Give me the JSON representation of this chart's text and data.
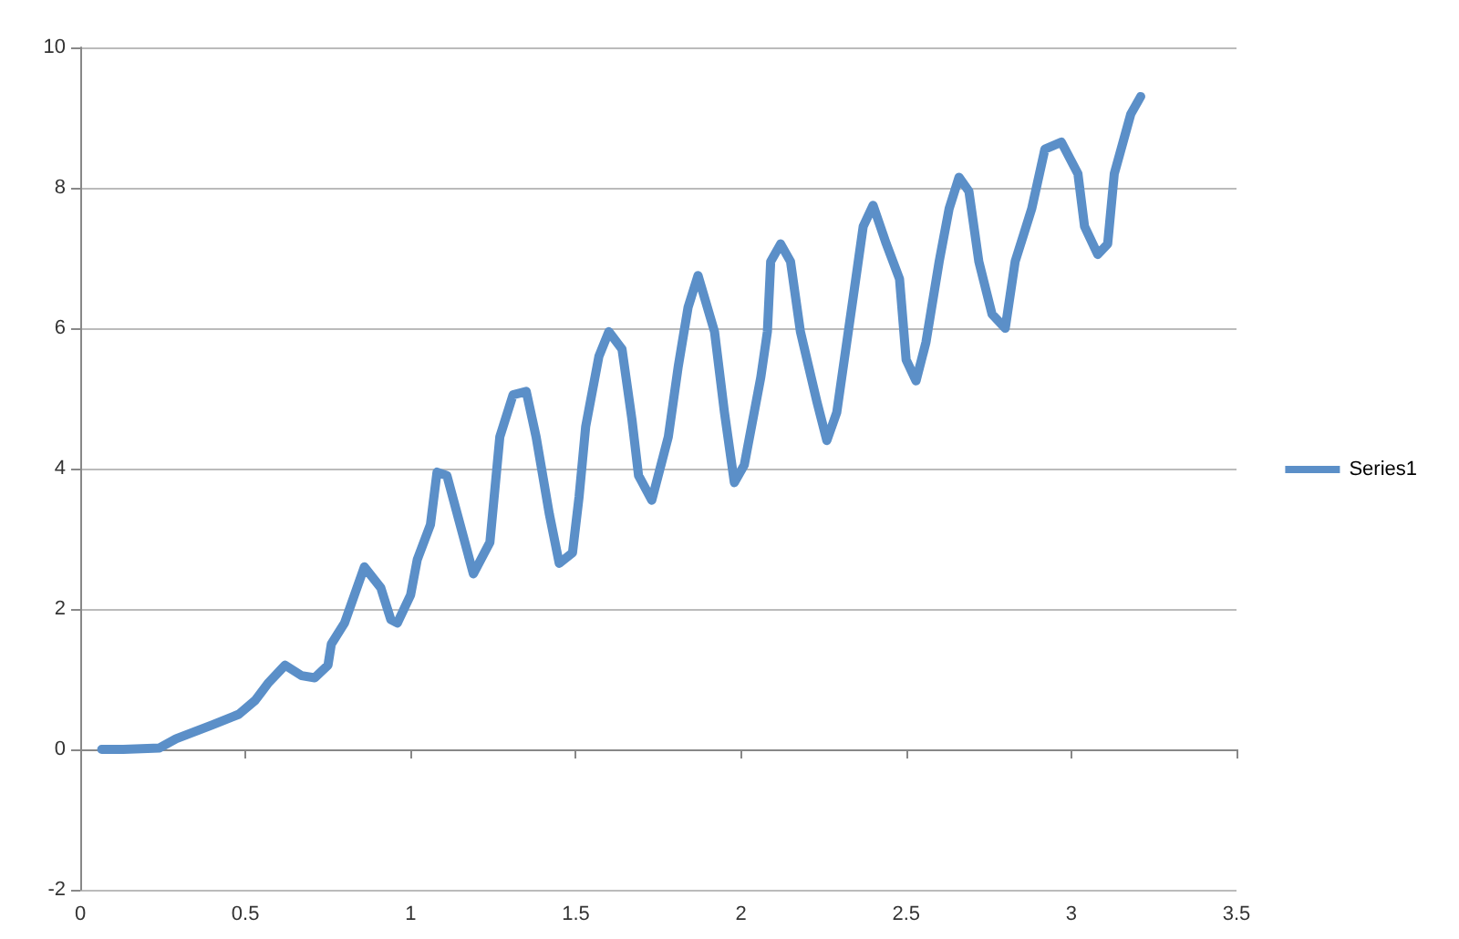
{
  "chart_data": {
    "type": "line",
    "xlim": [
      0,
      3.5
    ],
    "xticks": [
      0,
      0.5,
      1,
      1.5,
      2,
      2.5,
      3,
      3.5
    ],
    "ylim": [
      -2,
      10
    ],
    "yticks": [
      -2,
      0,
      2,
      4,
      6,
      8,
      10
    ],
    "grid": "y",
    "legend": "right",
    "marker": "none",
    "series": [
      {
        "name": "Series1",
        "color": "#5b8fc8",
        "x": [
          0.065,
          0.13,
          0.24,
          0.29,
          0.4,
          0.48,
          0.53,
          0.57,
          0.61,
          0.62,
          0.67,
          0.71,
          0.75,
          0.76,
          0.8,
          0.83,
          0.86,
          0.91,
          0.94,
          0.96,
          1.0,
          1.02,
          1.06,
          1.08,
          1.11,
          1.15,
          1.19,
          1.24,
          1.27,
          1.31,
          1.35,
          1.38,
          1.42,
          1.45,
          1.49,
          1.51,
          1.53,
          1.57,
          1.6,
          1.64,
          1.67,
          1.69,
          1.73,
          1.78,
          1.81,
          1.84,
          1.87,
          1.92,
          1.95,
          1.98,
          2.01,
          2.06,
          2.08,
          2.09,
          2.12,
          2.15,
          2.18,
          2.23,
          2.26,
          2.29,
          2.34,
          2.37,
          2.4,
          2.44,
          2.48,
          2.5,
          2.53,
          2.56,
          2.6,
          2.63,
          2.66,
          2.69,
          2.72,
          2.76,
          2.8,
          2.83,
          2.88,
          2.92,
          2.97,
          3.02,
          3.04,
          3.08,
          3.11,
          3.13,
          3.18,
          3.21
        ],
        "values": [
          0,
          0,
          0.02,
          0.15,
          0.35,
          0.5,
          0.7,
          0.95,
          1.15,
          1.2,
          1.05,
          1.02,
          1.2,
          1.5,
          1.8,
          2.2,
          2.6,
          2.3,
          1.85,
          1.8,
          2.2,
          2.7,
          3.2,
          3.95,
          3.9,
          3.2,
          2.5,
          2.95,
          4.45,
          5.05,
          5.1,
          4.45,
          3.35,
          2.65,
          2.8,
          3.6,
          4.6,
          5.6,
          5.95,
          5.7,
          4.7,
          3.9,
          3.55,
          4.45,
          5.45,
          6.3,
          6.75,
          5.95,
          4.8,
          3.8,
          4.05,
          5.3,
          5.95,
          6.95,
          7.2,
          6.95,
          5.95,
          4.95,
          4.4,
          4.8,
          6.45,
          7.45,
          7.75,
          7.2,
          6.7,
          5.55,
          5.25,
          5.8,
          6.95,
          7.7,
          8.15,
          7.95,
          6.95,
          6.2,
          6.0,
          6.95,
          7.7,
          8.55,
          8.65,
          8.2,
          7.45,
          7.05,
          7.2,
          8.2,
          9.05,
          9.3
        ]
      }
    ]
  }
}
